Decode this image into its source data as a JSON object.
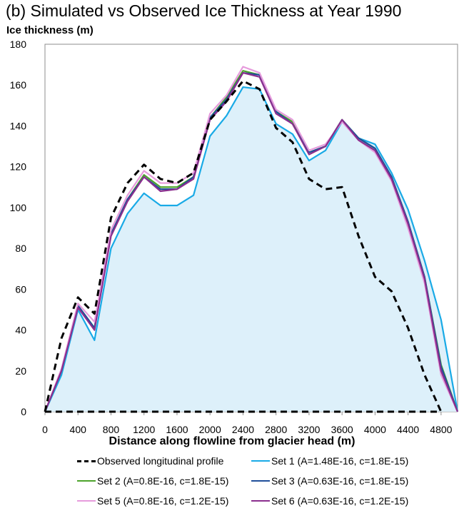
{
  "chart_data": {
    "type": "line",
    "title": "(b)   Simulated vs Observed Ice Thickness at Year 1990",
    "ylabel": "Ice thickness (m)",
    "xlabel": "Distance along flowline from glacier head (m)",
    "xlim": [
      0,
      5000
    ],
    "ylim": [
      0,
      180
    ],
    "xticks": [
      0,
      400,
      800,
      1200,
      1600,
      2000,
      2400,
      2800,
      3200,
      3600,
      4000,
      4400,
      4800
    ],
    "yticks": [
      0,
      20,
      40,
      60,
      80,
      100,
      120,
      140,
      160,
      180
    ],
    "grid": false,
    "legend_position": "bottom",
    "x": [
      0,
      200,
      400,
      600,
      800,
      1000,
      1200,
      1400,
      1600,
      1800,
      2000,
      2200,
      2400,
      2600,
      2800,
      3000,
      3200,
      3400,
      3600,
      3800,
      4000,
      4200,
      4400,
      4600,
      4800,
      5000
    ],
    "series": [
      {
        "name": "Observed longitudinal profile",
        "color": "#000000",
        "dash": true,
        "values": [
          0,
          36,
          56,
          48,
          95,
          112,
          121,
          114,
          112,
          117,
          143,
          152,
          162,
          158,
          139,
          132,
          114,
          109,
          110,
          86,
          66,
          59,
          41,
          18,
          0,
          null
        ]
      },
      {
        "name": "Set 1 (A=1.48E-16, c=1.8E-15)",
        "color": "#19AAE6",
        "fill": "#DDF0FA",
        "values": [
          0,
          18,
          50,
          35,
          80,
          97,
          107,
          101,
          101,
          106,
          135,
          145,
          159,
          158,
          141,
          136,
          123,
          128,
          142,
          134,
          131,
          117,
          99,
          74,
          45,
          0
        ]
      },
      {
        "name": "Set 2 (A=0.8E-16, c=1.8E-15)",
        "color": "#4CA32B",
        "values": [
          0,
          20,
          52,
          41,
          87,
          104,
          116,
          110,
          110,
          115,
          144,
          154,
          167,
          165,
          147,
          142,
          127,
          130,
          143,
          134,
          129,
          115,
          93,
          66,
          23,
          0
        ]
      },
      {
        "name": "Set 3 (A=0.63E-16, c=1.8E-15)",
        "color": "#1F4E9A",
        "values": [
          0,
          20,
          52,
          41,
          87,
          104,
          115,
          109,
          109,
          115,
          144,
          153,
          166,
          165,
          147,
          141,
          127,
          130,
          143,
          134,
          129,
          115,
          93,
          66,
          22,
          0
        ]
      },
      {
        "name": "Set 5 (A=0.8E-16, c=1.2E-15)",
        "color": "#E69BDC",
        "values": [
          0,
          21,
          53,
          44,
          89,
          106,
          118,
          112,
          112,
          117,
          146,
          155,
          169,
          166,
          148,
          143,
          128,
          131,
          142,
          133,
          127,
          113,
          90,
          63,
          18,
          0
        ]
      },
      {
        "name": "Set 6 (A=0.63E-16, c=1.2E-15)",
        "color": "#8A2F8E",
        "values": [
          0,
          20,
          51,
          40,
          86,
          103,
          115,
          108,
          109,
          114,
          143,
          152,
          166,
          164,
          146,
          141,
          126,
          130,
          143,
          133,
          128,
          114,
          92,
          65,
          20,
          0
        ]
      }
    ],
    "baseline": {
      "color": "#000000",
      "dash": true,
      "x": [
        0,
        4800
      ],
      "y": [
        0,
        0
      ]
    }
  }
}
